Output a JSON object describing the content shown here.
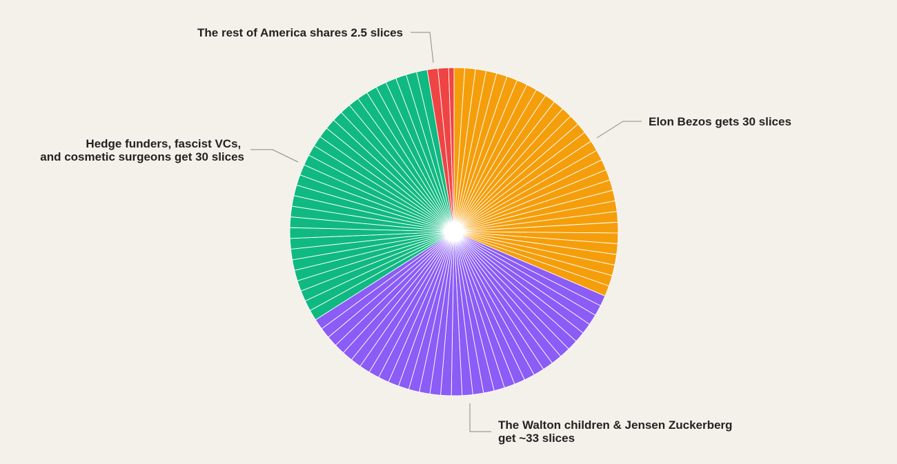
{
  "chart_data": {
    "type": "pie",
    "title": "",
    "total_slices": 95.5,
    "start_angle_deg": 0,
    "direction": "clockwise",
    "series": [
      {
        "name": "Elon Bezos",
        "value": 30,
        "color": "#f59e0b",
        "label_lines": [
          "Elon Bezos gets 30 slices"
        ]
      },
      {
        "name": "The Walton children & Jensen Zuckerberg",
        "value": 33,
        "color": "#8b5cf6",
        "label_lines": [
          "The Walton children & Jensen Zuckerberg",
          "get ~33 slices"
        ]
      },
      {
        "name": "Hedge funders, fascist VCs, and cosmetic surgeons",
        "value": 30,
        "color": "#10b981",
        "label_lines": [
          "Hedge funders, fascist VCs,",
          "and cosmetic surgeons get 30 slices"
        ]
      },
      {
        "name": "The rest of America",
        "value": 2.5,
        "color": "#ef4444",
        "label_lines": [
          "The rest of America shares 2.5 slices"
        ]
      }
    ],
    "legend": "none",
    "grid": false
  }
}
